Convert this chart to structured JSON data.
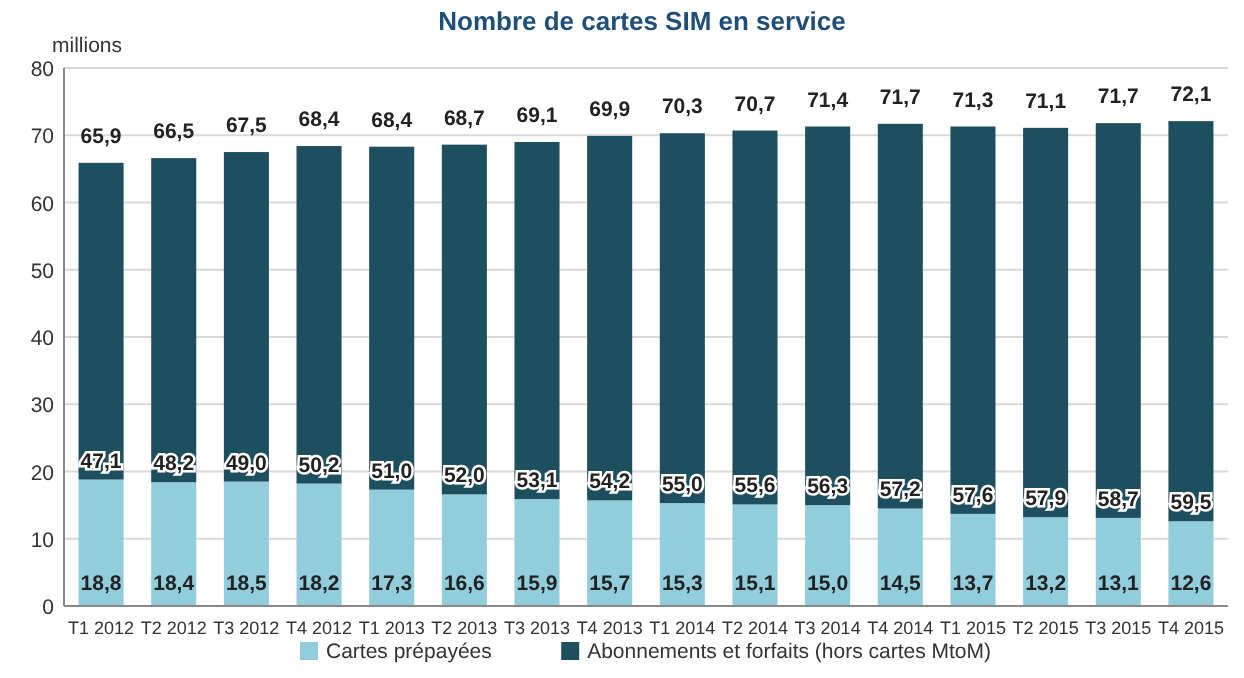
{
  "chart_data": {
    "type": "bar",
    "title": "Nombre de cartes SIM en service",
    "ylabel": "millions",
    "stacked": true,
    "categories": [
      "T1 2012",
      "T2 2012",
      "T3 2012",
      "T4 2012",
      "T1 2013",
      "T2 2013",
      "T3 2013",
      "T4 2013",
      "T1 2014",
      "T2 2014",
      "T3 2014",
      "T4 2014",
      "T1 2015",
      "T2 2015",
      "T3 2015",
      "T4 2015"
    ],
    "series": [
      {
        "name": "Cartes prépayées",
        "color": "#92cddc",
        "values": [
          18.8,
          18.4,
          18.5,
          18.2,
          17.3,
          16.6,
          15.9,
          15.7,
          15.3,
          15.1,
          15.0,
          14.5,
          13.7,
          13.2,
          13.1,
          12.6
        ],
        "value_labels": [
          "18,8",
          "18,4",
          "18,5",
          "18,2",
          "17,3",
          "16,6",
          "15,9",
          "15,7",
          "15,3",
          "15,1",
          "15,0",
          "14,5",
          "13,7",
          "13,2",
          "13,1",
          "12,6"
        ]
      },
      {
        "name": "Abonnements et forfaits (hors cartes MtoM)",
        "color": "#1d4f5e",
        "values": [
          47.1,
          48.2,
          49.0,
          50.2,
          51.0,
          52.0,
          53.1,
          54.2,
          55.0,
          55.6,
          56.3,
          57.2,
          57.6,
          57.9,
          58.7,
          59.5
        ],
        "value_labels": [
          "47,1",
          "48,2",
          "49,0",
          "50,2",
          "51,0",
          "52,0",
          "53,1",
          "54,2",
          "55,0",
          "55,6",
          "56,3",
          "57,2",
          "57,6",
          "57,9",
          "58,7",
          "59,5"
        ]
      }
    ],
    "totals": [
      "65,9",
      "66,5",
      "67,5",
      "68,4",
      "68,4",
      "68,7",
      "69,1",
      "69,9",
      "70,3",
      "70,7",
      "71,4",
      "71,7",
      "71,3",
      "71,1",
      "71,7",
      "72,1"
    ],
    "ylim": [
      0,
      80
    ],
    "yticks": [
      0,
      10,
      20,
      30,
      40,
      50,
      60,
      70,
      80
    ],
    "grid": "y",
    "legend": "bottom"
  }
}
